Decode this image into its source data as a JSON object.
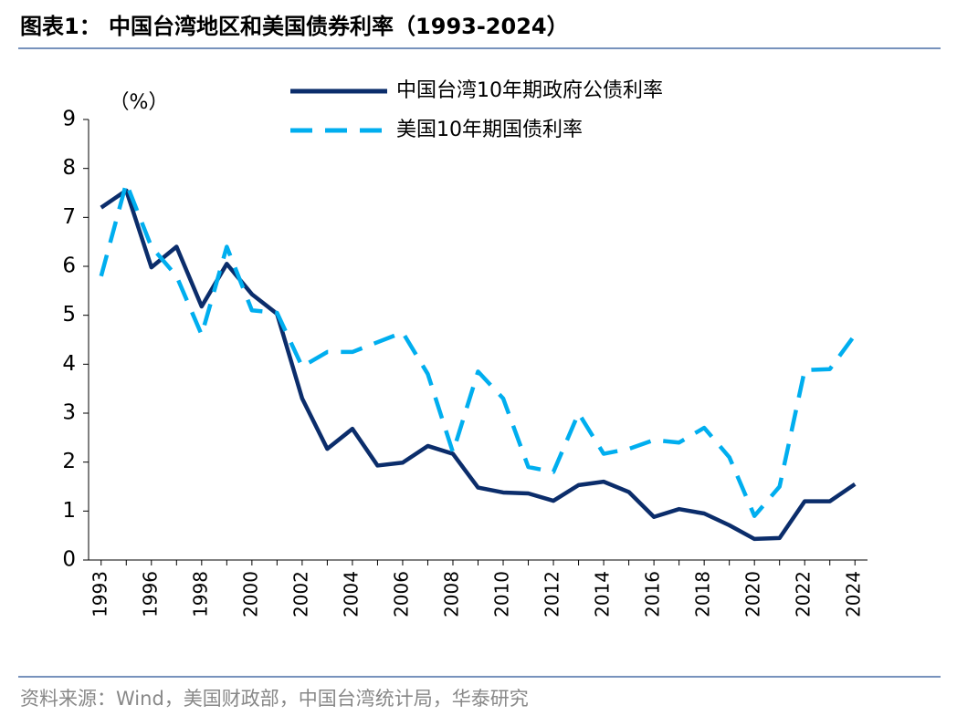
{
  "title": "图表1：  中国台湾地区和美国债券利率（1993-2024）",
  "source": "资料来源：Wind，美国财政部，中国台湾统计局，华泰研究",
  "chart_data": {
    "type": "line",
    "y_label": "（%）",
    "categories": [
      "1993",
      null,
      "1996",
      null,
      "1998",
      null,
      "2000",
      null,
      "2002",
      null,
      "2004",
      null,
      "2006",
      null,
      "2008",
      null,
      "2010",
      null,
      "2012",
      null,
      "2014",
      null,
      "2016",
      null,
      "2018",
      null,
      "2020",
      null,
      "2022",
      null,
      "2024"
    ],
    "series": [
      {
        "name": "中国台湾10年期政府公债利率",
        "color": "#0b2d6b",
        "dash": false,
        "values": [
          7.2,
          7.55,
          5.98,
          6.4,
          5.18,
          6.05,
          5.43,
          5.03,
          3.3,
          2.27,
          2.68,
          1.93,
          1.99,
          2.33,
          2.17,
          1.48,
          1.38,
          1.36,
          1.21,
          1.53,
          1.6,
          1.39,
          0.88,
          1.04,
          0.95,
          0.71,
          0.43,
          0.45,
          1.2,
          1.2,
          1.55
        ]
      },
      {
        "name": "美国10年期国债利率",
        "color": "#00aeef",
        "dash": true,
        "values": [
          5.8,
          7.7,
          6.4,
          5.8,
          4.6,
          6.4,
          5.1,
          5.05,
          3.95,
          4.25,
          4.25,
          4.45,
          4.65,
          3.8,
          2.2,
          3.85,
          3.3,
          1.9,
          1.8,
          3.0,
          2.17,
          2.27,
          2.45,
          2.4,
          2.7,
          2.1,
          0.9,
          1.5,
          3.88,
          3.9,
          4.6
        ]
      }
    ],
    "ylim": [
      0,
      9
    ],
    "yticks": [
      0,
      1,
      2,
      3,
      4,
      5,
      6,
      7,
      8,
      9
    ]
  }
}
